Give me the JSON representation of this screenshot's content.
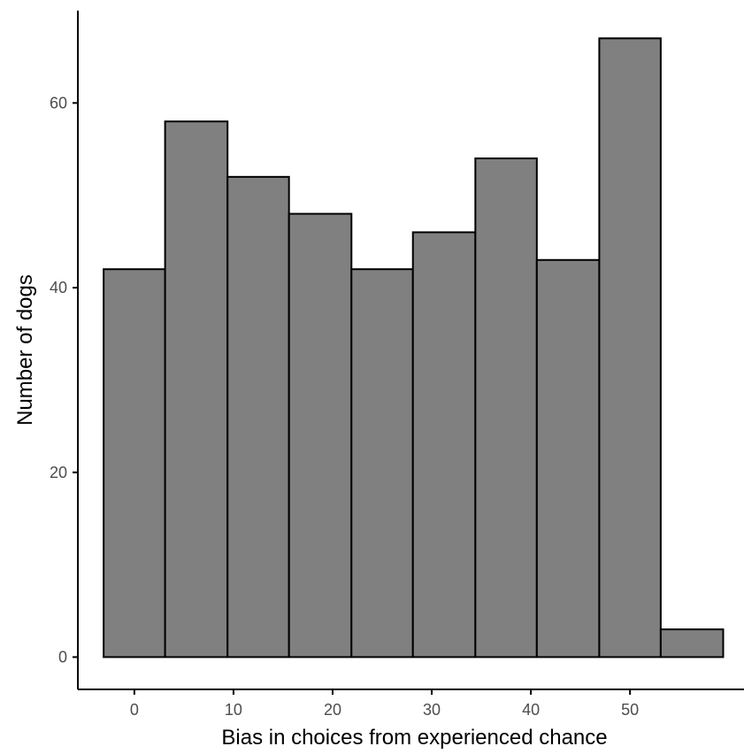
{
  "colors": {
    "bar_fill": "#808080",
    "bar_stroke": "#000000",
    "axis": "#000000",
    "tick_label": "#4d4d4d",
    "background": "#ffffff"
  },
  "chart_data": {
    "type": "bar",
    "title": "",
    "xlabel": "Bias in choices from experienced chance",
    "ylabel": "Number of dogs",
    "xlim": [
      -5.7,
      61.5
    ],
    "ylim": [
      -3.5,
      70
    ],
    "x_ticks": [
      0,
      10,
      20,
      30,
      40,
      50
    ],
    "y_ticks": [
      0,
      20,
      40,
      60
    ],
    "grid": false,
    "bins": [
      {
        "x0": -3.1,
        "x1": 3.1,
        "count": 42
      },
      {
        "x0": 3.1,
        "x1": 9.4,
        "count": 58
      },
      {
        "x0": 9.4,
        "x1": 15.6,
        "count": 52
      },
      {
        "x0": 15.6,
        "x1": 21.9,
        "count": 48
      },
      {
        "x0": 21.9,
        "x1": 28.1,
        "count": 42
      },
      {
        "x0": 28.1,
        "x1": 34.4,
        "count": 46
      },
      {
        "x0": 34.4,
        "x1": 40.6,
        "count": 54
      },
      {
        "x0": 40.6,
        "x1": 46.9,
        "count": 43
      },
      {
        "x0": 46.9,
        "x1": 53.1,
        "count": 67
      },
      {
        "x0": 53.1,
        "x1": 59.4,
        "count": 3
      }
    ]
  }
}
